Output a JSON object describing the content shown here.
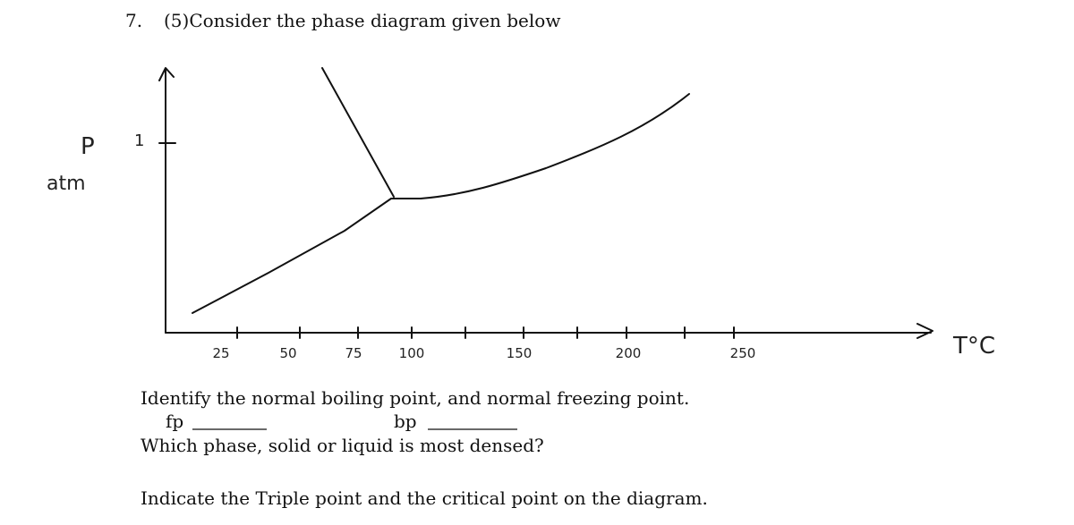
{
  "question": {
    "number": "7.",
    "text": "(5)Consider the phase diagram given below"
  },
  "diagram": {
    "y_label": "P",
    "y_unit": "atm",
    "y_tick": "1",
    "x_label": "T°C",
    "x_ticks": [
      "25",
      "50",
      "75",
      "100",
      "150",
      "200",
      "250"
    ]
  },
  "prompts": {
    "line1": "Identify the normal boiling point, and normal freezing point.",
    "fp": "fp",
    "bp": "bp",
    "line2": "Which phase, solid or liquid is most densed?",
    "line3": "Indicate the Triple point and the critical point on the diagram."
  }
}
